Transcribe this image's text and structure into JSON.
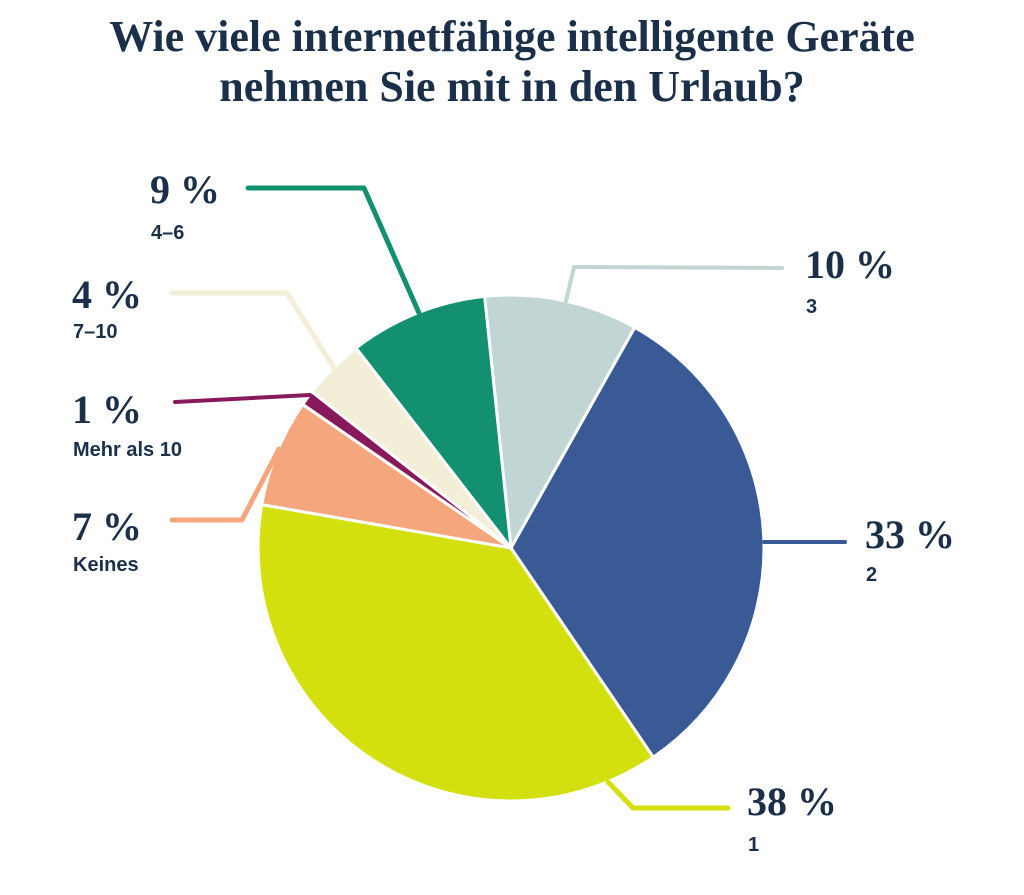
{
  "title": {
    "full": "Wie viele internetfähige intelligente Geräte nehmen Sie mit in den Urlaub?",
    "line1": "Wie viele internetfähige intelligente Geräte",
    "line2": "nehmen Sie mit in den Urlaub?"
  },
  "colors": {
    "text_navy": "#1b3048",
    "background": "#ffffff",
    "slice_separator": "#ffffff"
  },
  "chart_data": {
    "type": "pie",
    "title": "Wie viele internetfähige intelligente Geräte nehmen Sie mit in den Urlaub?",
    "unit": "%",
    "start_angle_deg": -6,
    "direction": "clockwise-from-top",
    "legend_position": "callout-labels",
    "slices": [
      {
        "category": "3",
        "percent": 10,
        "percent_label": "10 %",
        "color": "#c2d5d5"
      },
      {
        "category": "2",
        "percent": 33,
        "percent_label": "33 %",
        "color": "#3a5a96"
      },
      {
        "category": "1",
        "percent": 38,
        "percent_label": "38 %",
        "color": "#d3e00e"
      },
      {
        "category": "Keines",
        "percent": 7,
        "percent_label": "7 %",
        "color": "#f6a67c"
      },
      {
        "category": "Mehr als 10",
        "percent": 1,
        "percent_label": "1 %",
        "color": "#871a5b"
      },
      {
        "category": "7–10",
        "percent": 4,
        "percent_label": "4 %",
        "color": "#f2eed7"
      },
      {
        "category": "4–6",
        "percent": 9,
        "percent_label": "9 %",
        "color": "#12906f"
      }
    ]
  }
}
